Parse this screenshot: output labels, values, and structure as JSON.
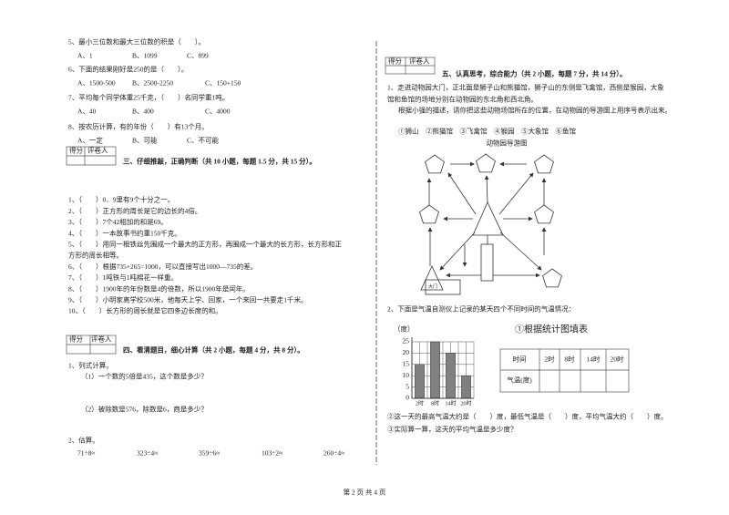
{
  "left": {
    "choices": [
      {
        "stem": "5、最小三位数和最大三位数的积是（　　）。",
        "options": [
          "A、1",
          "B、1099",
          "C、899"
        ]
      },
      {
        "stem": "6、下面的结果刚好是250的是（　　）。",
        "options": [
          "A、1500-500",
          "B、2500-2250",
          "C、150+150"
        ]
      },
      {
        "stem": "7、平均每个同学体重25千克，（　　）名同学重1吨。",
        "options": [
          "A、40",
          "B、400",
          "C、4000"
        ]
      },
      {
        "stem": "8、按农历计算，有的年份（　　）有13个月。",
        "options": [
          "A、一定",
          "B、可能",
          "C、不可能"
        ]
      }
    ],
    "section3": {
      "score": "得分",
      "grader": "评卷人",
      "title": "三、仔细推敲，正确判断（共 10 小题，每题 1.5 分，共 15 分）。",
      "lines": [
        "1、（　　）0．9里有9个十分之一。",
        "2、（　　）正方形的周长是它的边长的4倍。",
        "3、（　　）7个42相加的和是69。",
        "4、（　　）一本故事书约重150千克。",
        "5、（　　）用同一根铁丝先围成一个最大的正方形，再围成一个最大的长方形，长方形和正",
        "方形的周长相等。",
        "6、（　　）根据735+265=1000，可以直接写出1000—735的差。",
        "7、（　　）1吨铁与1吨棉花一样重。",
        "8、（　　）1900年的年份数是4的倍数，所以1900年是闰年。",
        "9、（　　）小明家离学校500米，他每天上学、回家，一个来回一共要走1千米。",
        "10、（　　）长方形的周长就是它四条边长度的和。"
      ]
    },
    "section4": {
      "score": "得分",
      "grader": "评卷人",
      "title": "四、看清题目，细心计算（共 2 小题，每题 4 分，共 8 分）。",
      "q1": "1、列式计算。",
      "q1a": "（1）一个数的5倍是435，这个数是多少？",
      "q1b": "（2）被除数是576，除数是6，商是多少？",
      "q2": "2、估算。",
      "estimates": [
        "71÷8≈",
        "323÷4≈",
        "359÷6≈",
        "103÷2≈",
        "260÷4≈"
      ]
    }
  },
  "right": {
    "section5": {
      "score": "得分",
      "grader": "评卷人",
      "title": "五、认真思考，综合能力（共 2 小题，每题 7 分，共 14 分）。",
      "q1_lines": [
        "1、走进动物园大门，正北面是狮子山和熊猫馆，狮子山的东侧是飞禽馆，西侧是猴园，大象",
        "馆和鱼馆的场地分别在动物园的东北角和西北角。",
        "根据小强的描述，请你把这些动物场馆所在的位置，在动物园的导游图上用序号表示出来。"
      ],
      "venues": "①狮山　②熊猫馆　③飞禽馆　④猴园　⑤大象馆　⑥鱼馆",
      "map_title": "动物园导游图",
      "gate": "大门",
      "q2": "2、下面是气温自测仪上记录的某天四个不同时间的气温情况：",
      "table_title": "①根据统计图填表",
      "table_header": [
        "时间",
        "2时",
        "8时",
        "14时",
        "20时"
      ],
      "table_row_label": "气温(度)",
      "q2b": "②这一天的最高气温大约是（　　）度，最低气温是（　　）度，平均气温大约（　　）度。",
      "q2c": "③实际算一算，这天的平均气温是多少度？"
    },
    "temp_chart": {
      "type": "bar",
      "y_label": "（度）",
      "categories": [
        "2时",
        "8时",
        "14时",
        "20时"
      ],
      "values": [
        15,
        25,
        20,
        10
      ],
      "color": "#808080",
      "ylim": [
        0,
        25
      ],
      "yticks": [
        0,
        5,
        10,
        15,
        20,
        25
      ],
      "grid": true
    }
  },
  "footer": "第 2 页 共 4 页"
}
